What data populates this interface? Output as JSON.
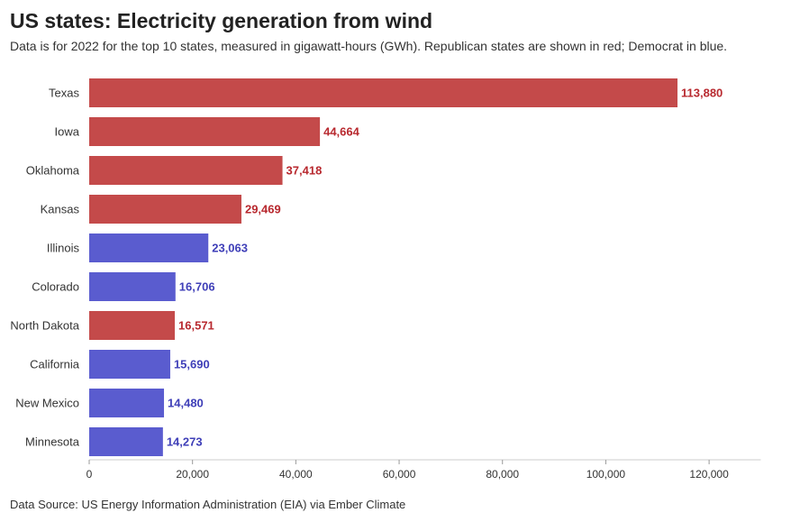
{
  "header": {
    "title": "US states: Electricity generation from wind",
    "subtitle": "Data is for 2022 for the top 10 states, measured in gigawatt-hours (GWh). Republican states are shown in red; Democrat in blue."
  },
  "footer": {
    "source": "Data Source: US Energy Information Administration (EIA) via Ember Climate"
  },
  "colors": {
    "republican": "#c44a4a",
    "democrat": "#5a5ccf",
    "republican_label": "#b8292f",
    "democrat_label": "#3f3fb8"
  },
  "chart_data": {
    "type": "bar",
    "orientation": "horizontal",
    "title": "US states: Electricity generation from wind",
    "subtitle": "Data is for 2022 for the top 10 states, measured in gigawatt-hours (GWh). Republican states are shown in red; Democrat in blue.",
    "categories": [
      "Texas",
      "Iowa",
      "Oklahoma",
      "Kansas",
      "Illinois",
      "Colorado",
      "North Dakota",
      "California",
      "New Mexico",
      "Minnesota"
    ],
    "values": [
      113880,
      44664,
      37418,
      29469,
      23063,
      16706,
      16571,
      15690,
      14480,
      14273
    ],
    "value_labels": [
      "113,880",
      "44,664",
      "37,418",
      "29,469",
      "23,063",
      "16,706",
      "16,571",
      "15,690",
      "14,480",
      "14,273"
    ],
    "party": [
      "republican",
      "republican",
      "republican",
      "republican",
      "democrat",
      "democrat",
      "republican",
      "democrat",
      "democrat",
      "democrat"
    ],
    "xlim": [
      0,
      130000
    ],
    "xticks": [
      0,
      20000,
      40000,
      60000,
      80000,
      100000,
      120000
    ],
    "xtick_labels": [
      "0",
      "20,000",
      "40,000",
      "60,000",
      "80,000",
      "100,000",
      "120,000"
    ],
    "xlabel": "",
    "ylabel": "",
    "grid": false,
    "legend": "none"
  }
}
